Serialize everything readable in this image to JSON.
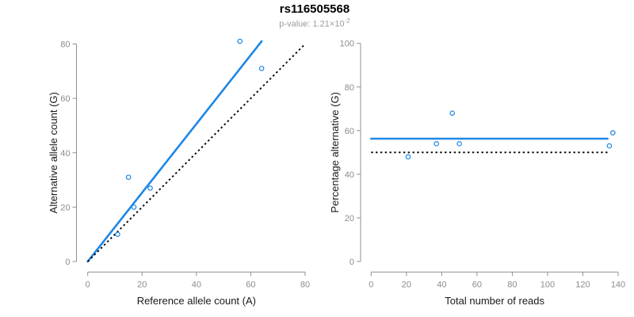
{
  "header": {
    "title": "rs116505568",
    "p_label": "p-value: 1.21×10",
    "p_exponent": "-2"
  },
  "colors": {
    "accent_blue": "#1e88e5",
    "dashed_black": "#000000",
    "axis_gray": "#909090",
    "tick_label_gray": "#8c8c8c",
    "axis_title_color": "#1a1a1a",
    "subtitle_gray": "#9b9b9b"
  },
  "chart_data": [
    {
      "type": "scatter",
      "name": "allele-counts",
      "xlabel": "Reference allele count (A)",
      "ylabel": "Alternative allele count (G)",
      "xlim": [
        0,
        80
      ],
      "ylim": [
        0,
        80
      ],
      "xticks": [
        0,
        20,
        40,
        60,
        80
      ],
      "yticks": [
        0,
        20,
        40,
        60,
        80
      ],
      "grid": false,
      "points": [
        [
          11,
          10
        ],
        [
          17,
          20
        ],
        [
          23,
          27
        ],
        [
          15,
          31
        ],
        [
          56,
          81
        ],
        [
          64,
          71
        ]
      ],
      "lines": [
        {
          "name": "fit",
          "style": "solid",
          "color": "#1e88e5",
          "from": [
            0,
            0
          ],
          "to": [
            64,
            81
          ]
        },
        {
          "name": "identity",
          "style": "dashed",
          "color": "#000000",
          "from": [
            0,
            0
          ],
          "to": [
            80,
            80
          ]
        }
      ]
    },
    {
      "type": "scatter",
      "name": "percentage-vs-reads",
      "xlabel": "Total number of reads",
      "ylabel": "Percentage alternative (G)",
      "xlim": [
        0,
        140
      ],
      "ylim": [
        0,
        100
      ],
      "xticks": [
        0,
        20,
        40,
        60,
        80,
        100,
        120,
        140
      ],
      "yticks": [
        0,
        20,
        40,
        60,
        80,
        100
      ],
      "grid": false,
      "points": [
        [
          21,
          48
        ],
        [
          37,
          54
        ],
        [
          46,
          68
        ],
        [
          50,
          54
        ],
        [
          135,
          53
        ],
        [
          137,
          59
        ]
      ],
      "lines": [
        {
          "name": "mean-percentage",
          "style": "solid",
          "color": "#1e88e5",
          "y": 56.3,
          "from_x": 0,
          "to_x": 134
        },
        {
          "name": "fifty-percent",
          "style": "dashed",
          "color": "#000000",
          "y": 50,
          "from_x": 0,
          "to_x": 135
        }
      ]
    }
  ]
}
